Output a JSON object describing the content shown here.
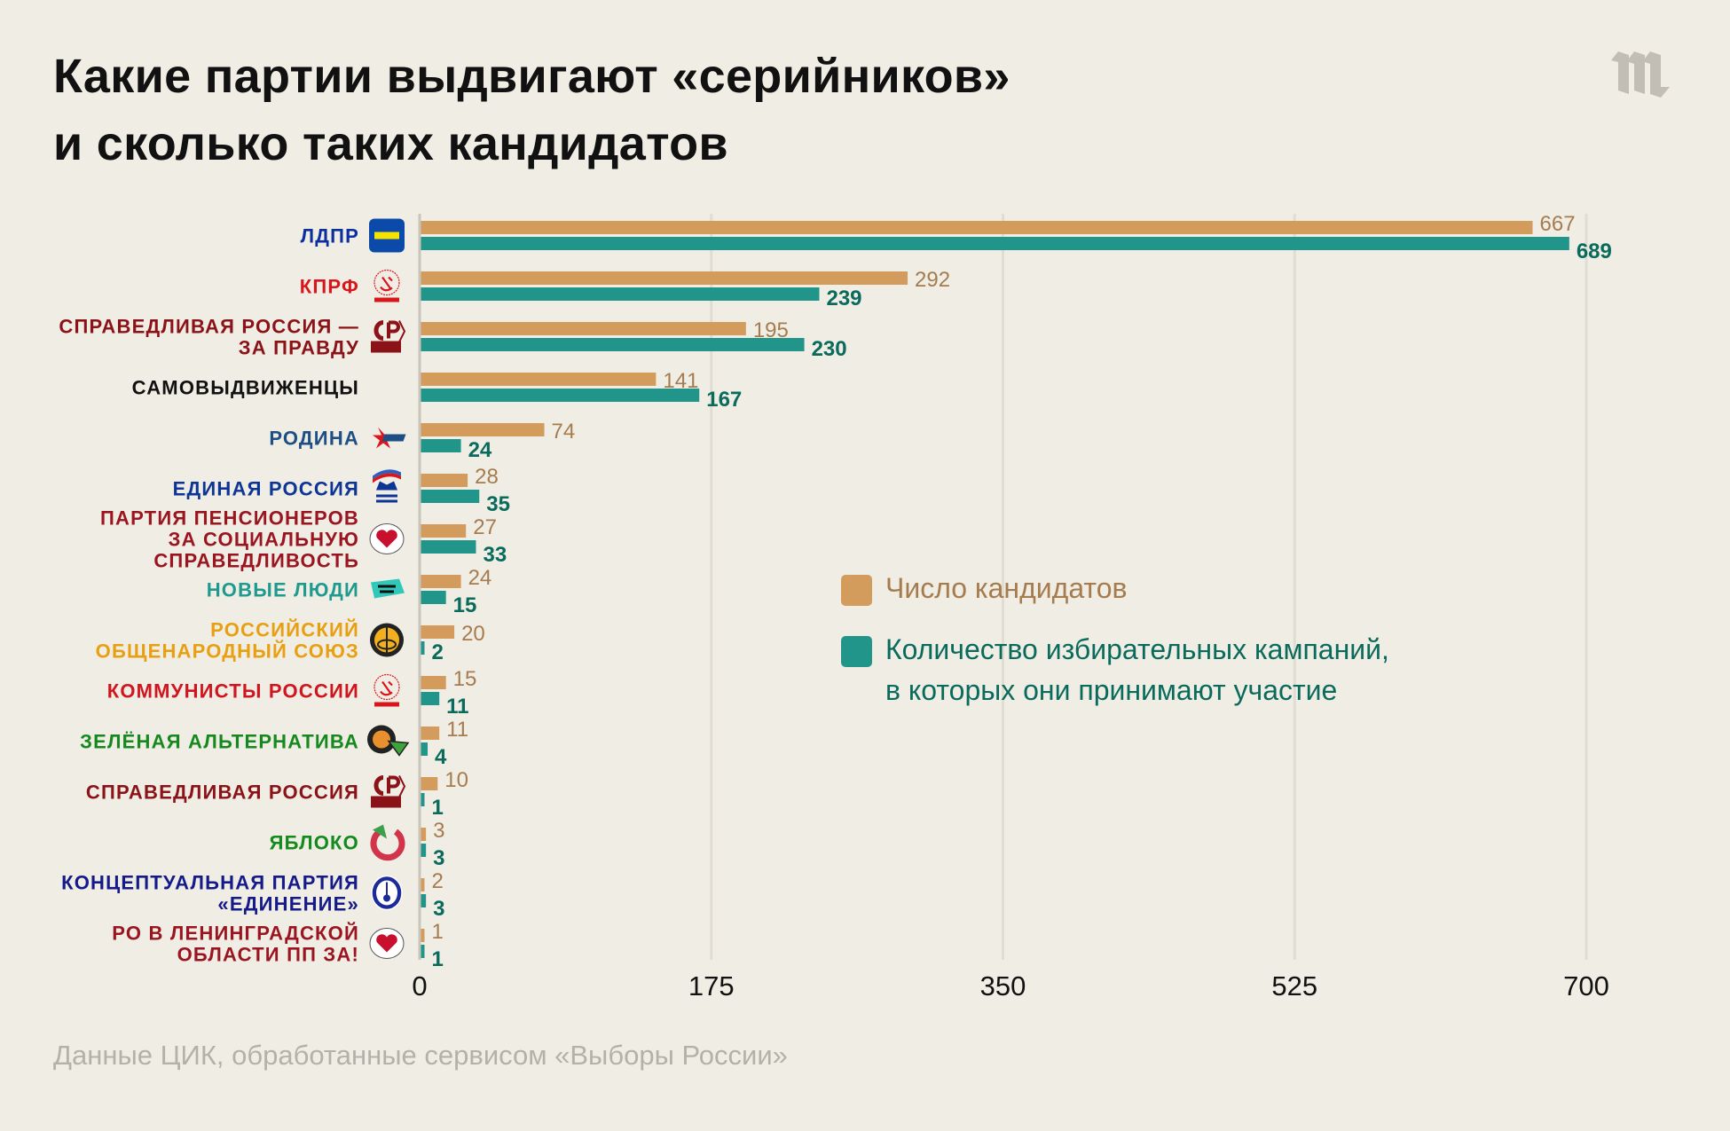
{
  "header": {
    "title_line1": "Какие партии выдвигают «серийников»",
    "title_line2": "и сколько таких кандидатов",
    "brand_logo": "meduza-m-logo"
  },
  "legend": {
    "items": [
      {
        "label": "Число кандидатов",
        "color": "#d39b5c"
      },
      {
        "label_line1": "Количество избирательных кампаний,",
        "label_line2": "в которых они принимают участие",
        "color": "#21958a"
      }
    ]
  },
  "footnote": "Данные ЦИК, обработанные сервисом «Выборы России»",
  "chart_data": {
    "type": "bar",
    "orientation": "horizontal",
    "title": "Какие партии выдвигают «серийников» и сколько таких кандидатов",
    "xlabel": "",
    "ylabel": "",
    "xlim": [
      0,
      700
    ],
    "xticks": [
      0,
      175,
      350,
      525,
      700
    ],
    "grid": true,
    "legend_position": "center-right",
    "categories": [
      {
        "lines": [
          "ЛДПР"
        ],
        "color": "#0b2fa0",
        "icon": "ldpr-logo-icon"
      },
      {
        "lines": [
          "КПРФ"
        ],
        "color": "#d9161c",
        "icon": "kprf-logo-icon"
      },
      {
        "lines": [
          "СПРАВЕДЛИВАЯ РОССИЯ —",
          "ЗА ПРАВДУ"
        ],
        "color": "#8b1217",
        "icon": "sr-za-pravdu-logo-icon"
      },
      {
        "lines": [
          "САМОВЫДВИЖЕНЦЫ"
        ],
        "color": "#111111",
        "icon": null
      },
      {
        "lines": [
          "РОДИНА"
        ],
        "color": "#1d4f84",
        "icon": "rodina-logo-icon"
      },
      {
        "lines": [
          "ЕДИНАЯ РОССИЯ"
        ],
        "color": "#0d3596",
        "icon": "united-russia-logo-icon"
      },
      {
        "lines": [
          "ПАРТИЯ ПЕНСИОНЕРОВ",
          "ЗА СОЦИАЛЬНУЮ",
          "СПРАВЕДЛИВОСТЬ"
        ],
        "color": "#9a1520",
        "icon": "pensioners-party-logo-icon"
      },
      {
        "lines": [
          "НОВЫЕ ЛЮДИ"
        ],
        "color": "#1e9a8f",
        "icon": "new-people-logo-icon"
      },
      {
        "lines": [
          "РОССИЙСКИЙ",
          "ОБЩЕНАРОДНЫЙ СОЮЗ"
        ],
        "color": "#e8a012",
        "icon": "ros-logo-icon"
      },
      {
        "lines": [
          "КОММУНИСТЫ РОССИИ"
        ],
        "color": "#d0151f",
        "icon": "communists-russia-logo-icon"
      },
      {
        "lines": [
          "ЗЕЛЁНАЯ АЛЬТЕРНАТИВА"
        ],
        "color": "#15891d",
        "icon": "green-alternative-logo-icon"
      },
      {
        "lines": [
          "СПРАВЕДЛИВАЯ РОССИЯ"
        ],
        "color": "#8b1217",
        "icon": "sr-logo-icon"
      },
      {
        "lines": [
          "ЯБЛОКО"
        ],
        "color": "#138a1c",
        "icon": "yabloko-logo-icon"
      },
      {
        "lines": [
          "КОНЦЕПТУАЛЬНАЯ ПАРТИЯ",
          "«ЕДИНЕНИЕ»"
        ],
        "color": "#141a8a",
        "icon": "edinenie-logo-icon"
      },
      {
        "lines": [
          "РО В ЛЕНИНГРАДСКОЙ",
          "ОБЛАСТИ ПП ЗА!"
        ],
        "color": "#9a1520",
        "icon": "pensioners-party-logo-icon"
      }
    ],
    "series": [
      {
        "name": "Число кандидатов",
        "bar_color": "#d39b5c",
        "label_color": "#a67c4e",
        "values": [
          667,
          292,
          195,
          141,
          74,
          28,
          27,
          24,
          20,
          15,
          11,
          10,
          3,
          2,
          1
        ]
      },
      {
        "name": "Количество избирательных кампаний, в которых они принимают участие",
        "bar_color": "#21958a",
        "label_color": "#0a6b5c",
        "values": [
          689,
          239,
          230,
          167,
          24,
          35,
          33,
          15,
          2,
          11,
          4,
          1,
          3,
          3,
          1
        ]
      }
    ]
  }
}
